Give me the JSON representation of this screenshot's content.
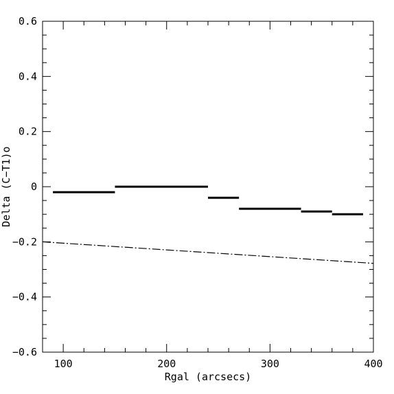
{
  "chart_data": {
    "type": "line",
    "title": "",
    "xlabel": "Rgal (arcsecs)",
    "ylabel": "Delta (C−T1)o",
    "xlim": [
      80,
      400
    ],
    "ylim": [
      -0.6,
      0.6
    ],
    "x_ticks": [
      100,
      200,
      300,
      400
    ],
    "x_tick_labels": [
      "100",
      "200",
      "300",
      "400"
    ],
    "y_ticks": [
      -0.6,
      -0.4,
      -0.2,
      0,
      0.2,
      0.4,
      0.6
    ],
    "y_tick_labels": [
      "−0.6",
      "−0.4",
      "−0.2",
      "0",
      "0.2",
      "0.4",
      "0.6"
    ],
    "grid": false,
    "series": [
      {
        "style": "step-segments",
        "color": "#000000",
        "segments": [
          {
            "x": [
              90,
              150
            ],
            "y": -0.02
          },
          {
            "x": [
              150,
              240
            ],
            "y": 0.0
          },
          {
            "x": [
              240,
              270
            ],
            "y": -0.04
          },
          {
            "x": [
              270,
              330
            ],
            "y": -0.08
          },
          {
            "x": [
              330,
              360
            ],
            "y": -0.09
          },
          {
            "x": [
              360,
              390
            ],
            "y": -0.1
          }
        ]
      },
      {
        "style": "dash-dot",
        "color": "#000000",
        "x": [
          80,
          400
        ],
        "y": [
          -0.2,
          -0.278
        ]
      }
    ]
  }
}
